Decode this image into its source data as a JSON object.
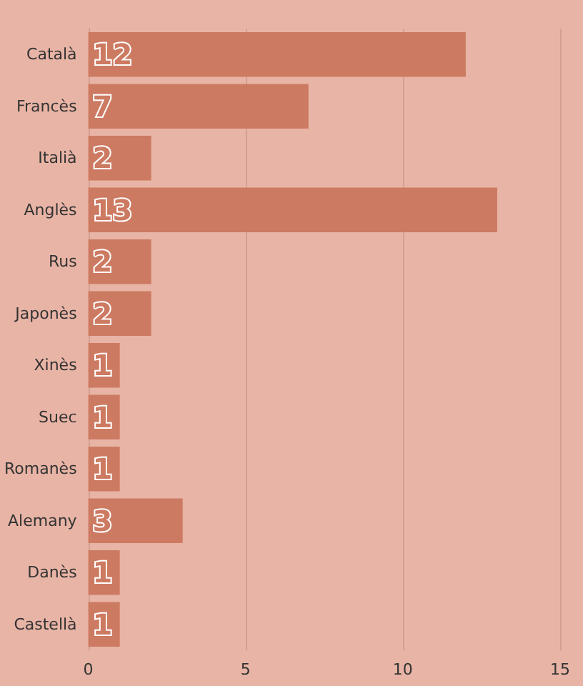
{
  "chart_data": {
    "type": "bar",
    "orientation": "horizontal",
    "categories": [
      "Català",
      "Francès",
      "Italià",
      "Anglès",
      "Rus",
      "Japonès",
      "Xinès",
      "Suec",
      "Romanès",
      "Alemany",
      "Danès",
      "Castellà"
    ],
    "values": [
      12,
      7,
      2,
      13,
      2,
      2,
      1,
      1,
      1,
      3,
      1,
      1
    ],
    "color": "#cd7a62",
    "xlim": [
      0,
      15
    ],
    "xticks": [
      0,
      5,
      10,
      15
    ],
    "grid": "x",
    "data_labels": true
  }
}
